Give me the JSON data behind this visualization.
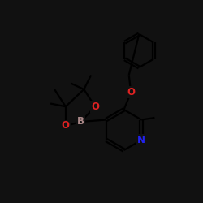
{
  "bg_color": "#111111",
  "line_color": "black",
  "lw": 1.6,
  "figsize": [
    2.5,
    2.5
  ],
  "dpi": 100,
  "xlim": [
    0,
    10
  ],
  "ylim": [
    0,
    10
  ],
  "colors": {
    "O": "#dd2222",
    "B": "#aa8888",
    "N": "#2222ee",
    "C": "black"
  }
}
